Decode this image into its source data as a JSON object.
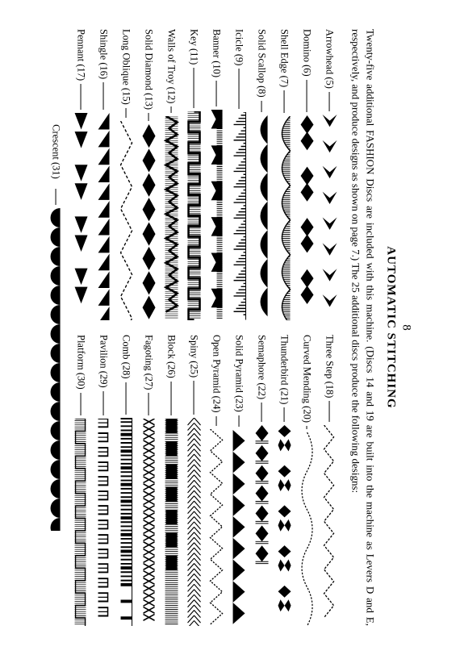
{
  "page_number": "8",
  "title": "AUTOMATIC STITCHING",
  "intro": "Twenty-five additional FASHION Discs are included with this machine. (Discs 14 and 19 are built into the machine as Levers D and E, respectively, and produce designs as shown on page 7.) The 25 additional discs produce the following designs:",
  "left": [
    {
      "label": "Arrowhead (5)",
      "dash": 24,
      "svg": "arrowhead"
    },
    {
      "label": "Domino (6)",
      "dash": 40,
      "svg": "domino"
    },
    {
      "label": "Shell Edge (7)",
      "dash": 28,
      "svg": "shelledge"
    },
    {
      "label": "Solid Scallop (8)",
      "dash": 14,
      "svg": "solidscallop"
    },
    {
      "label": "Icicle (9)",
      "dash": 50,
      "svg": "icicle"
    },
    {
      "label": "Banner (10)",
      "dash": 32,
      "svg": "banner"
    },
    {
      "label": "Key (11)",
      "dash": 50,
      "svg": "key"
    },
    {
      "label": "Walls of Troy (12)",
      "dash": 8,
      "svg": "troy"
    },
    {
      "label": "Solid Diamond (13)",
      "dash": 10,
      "svg": "diamond"
    },
    {
      "label": "Long Oblique (15)",
      "dash": 12,
      "svg": "oblique"
    },
    {
      "label": "Shingle (16)",
      "dash": 34,
      "svg": "shingle"
    },
    {
      "label": "Pennant (17)",
      "dash": 32,
      "svg": "pennant"
    }
  ],
  "right": [
    {
      "label": "Three Step (18)",
      "dash": 26,
      "svg": "threestep"
    },
    {
      "label": "Curved Mending (20)",
      "dash": 4,
      "svg": "curved"
    },
    {
      "label": "Thunderbird (21)",
      "dash": 18,
      "svg": "thunder"
    },
    {
      "label": "Semaphore (22)",
      "dash": 24,
      "svg": "semaphore"
    },
    {
      "label": "Solid Pyramid (23)",
      "dash": 14,
      "svg": "pyramid"
    },
    {
      "label": "Open Pyramid (24)",
      "dash": 12,
      "svg": "openpyramid"
    },
    {
      "label": "Spiny (25)",
      "dash": 42,
      "svg": "spiny"
    },
    {
      "label": "Block (26)",
      "dash": 42,
      "svg": "block"
    },
    {
      "label": "Fagoting (27)",
      "dash": 28,
      "svg": "fagoting"
    },
    {
      "label": "Comb (28)",
      "dash": 40,
      "svg": "comb"
    },
    {
      "label": "Pavilion (29)",
      "dash": 30,
      "svg": "pavilion"
    },
    {
      "label": "Platform (30)",
      "dash": 28,
      "svg": "platform"
    }
  ],
  "bottom": {
    "label": "Crescent (31)",
    "svg": "crescent"
  }
}
